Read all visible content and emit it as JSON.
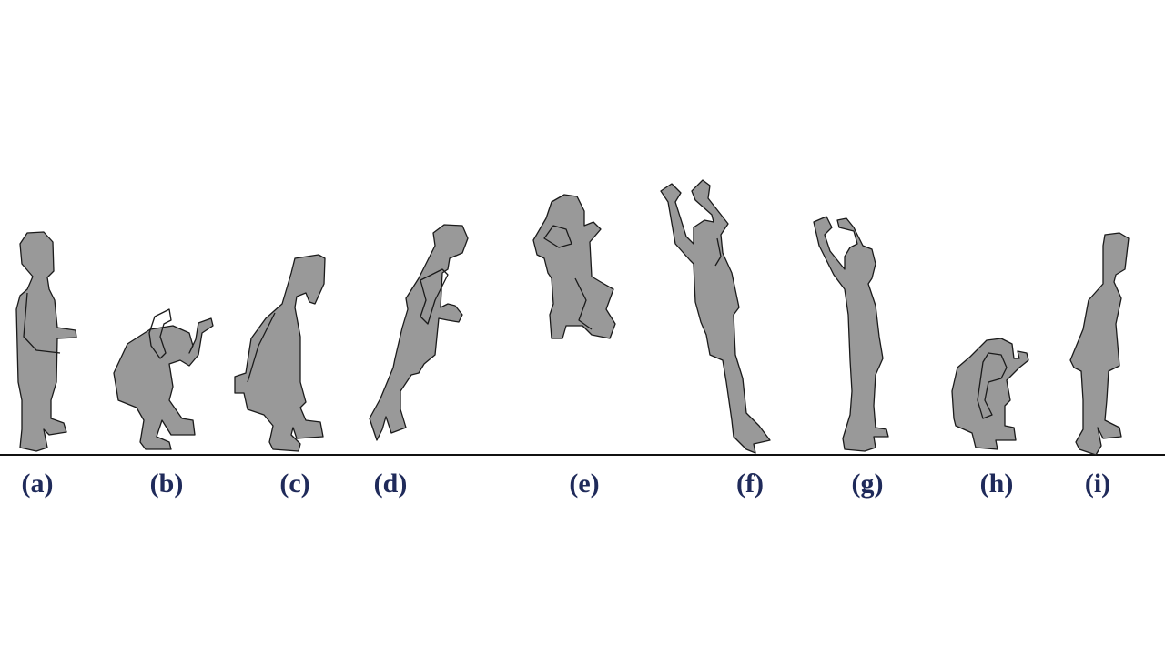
{
  "labels": [
    "(a)",
    "(b)",
    "(c)",
    "(d)",
    "(e)",
    "(f)",
    "(g)",
    "(h)",
    "(i)"
  ],
  "colors": {
    "figure_fill": "#999999",
    "outline": "#1a1a1a",
    "label": "#1f2a5a",
    "background": "#ffffff"
  }
}
